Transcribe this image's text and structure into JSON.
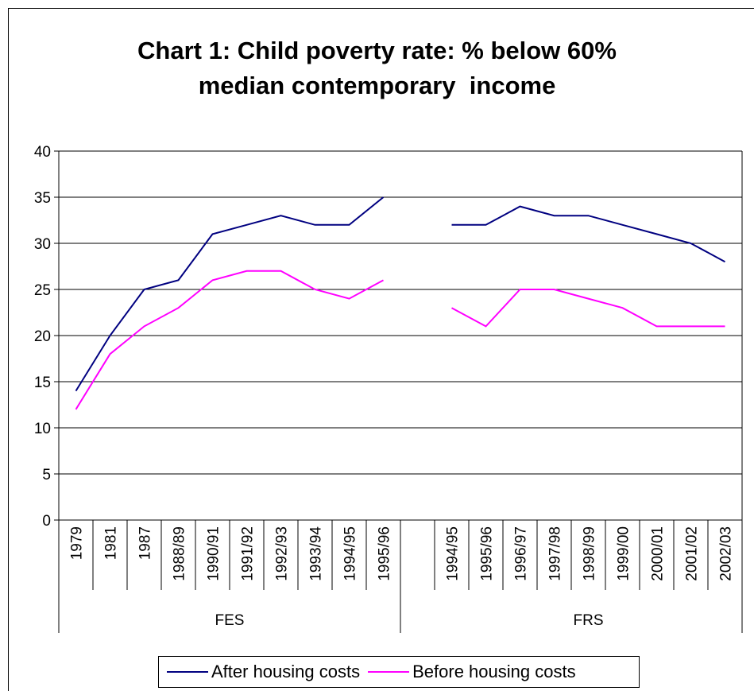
{
  "chart_data": {
    "type": "line",
    "title": [
      "Chart 1: Child poverty rate: % below 60%",
      "median contemporary  income"
    ],
    "ylim": [
      0,
      40
    ],
    "yticks": [
      0,
      5,
      10,
      15,
      20,
      25,
      30,
      35,
      40
    ],
    "grid": true,
    "legend_position": "bottom",
    "groups": [
      {
        "name": "FES",
        "categories": [
          "1979",
          "1981",
          "1987",
          "1988/89",
          "1990/91",
          "1991/92",
          "1992/93",
          "1993/94",
          "1994/95",
          "1995/96"
        ]
      },
      {
        "name": "",
        "categories": [
          ""
        ]
      },
      {
        "name": "FRS",
        "categories": [
          "1994/95",
          "1995/96",
          "1996/97",
          "1997/98",
          "1998/99",
          "1999/00",
          "2000/01",
          "2001/02",
          "2002/03"
        ]
      }
    ],
    "series": [
      {
        "name": "After housing costs",
        "color": "#000080",
        "values": [
          14,
          20,
          25,
          26,
          31,
          32,
          33,
          32,
          32,
          35,
          null,
          32,
          32,
          34,
          33,
          33,
          32,
          31,
          30,
          28
        ]
      },
      {
        "name": "Before housing costs",
        "color": "#ff00ff",
        "values": [
          12,
          18,
          21,
          23,
          26,
          27,
          27,
          25,
          24,
          26,
          null,
          23,
          21,
          25,
          25,
          24,
          23,
          21,
          21,
          21
        ]
      }
    ]
  }
}
